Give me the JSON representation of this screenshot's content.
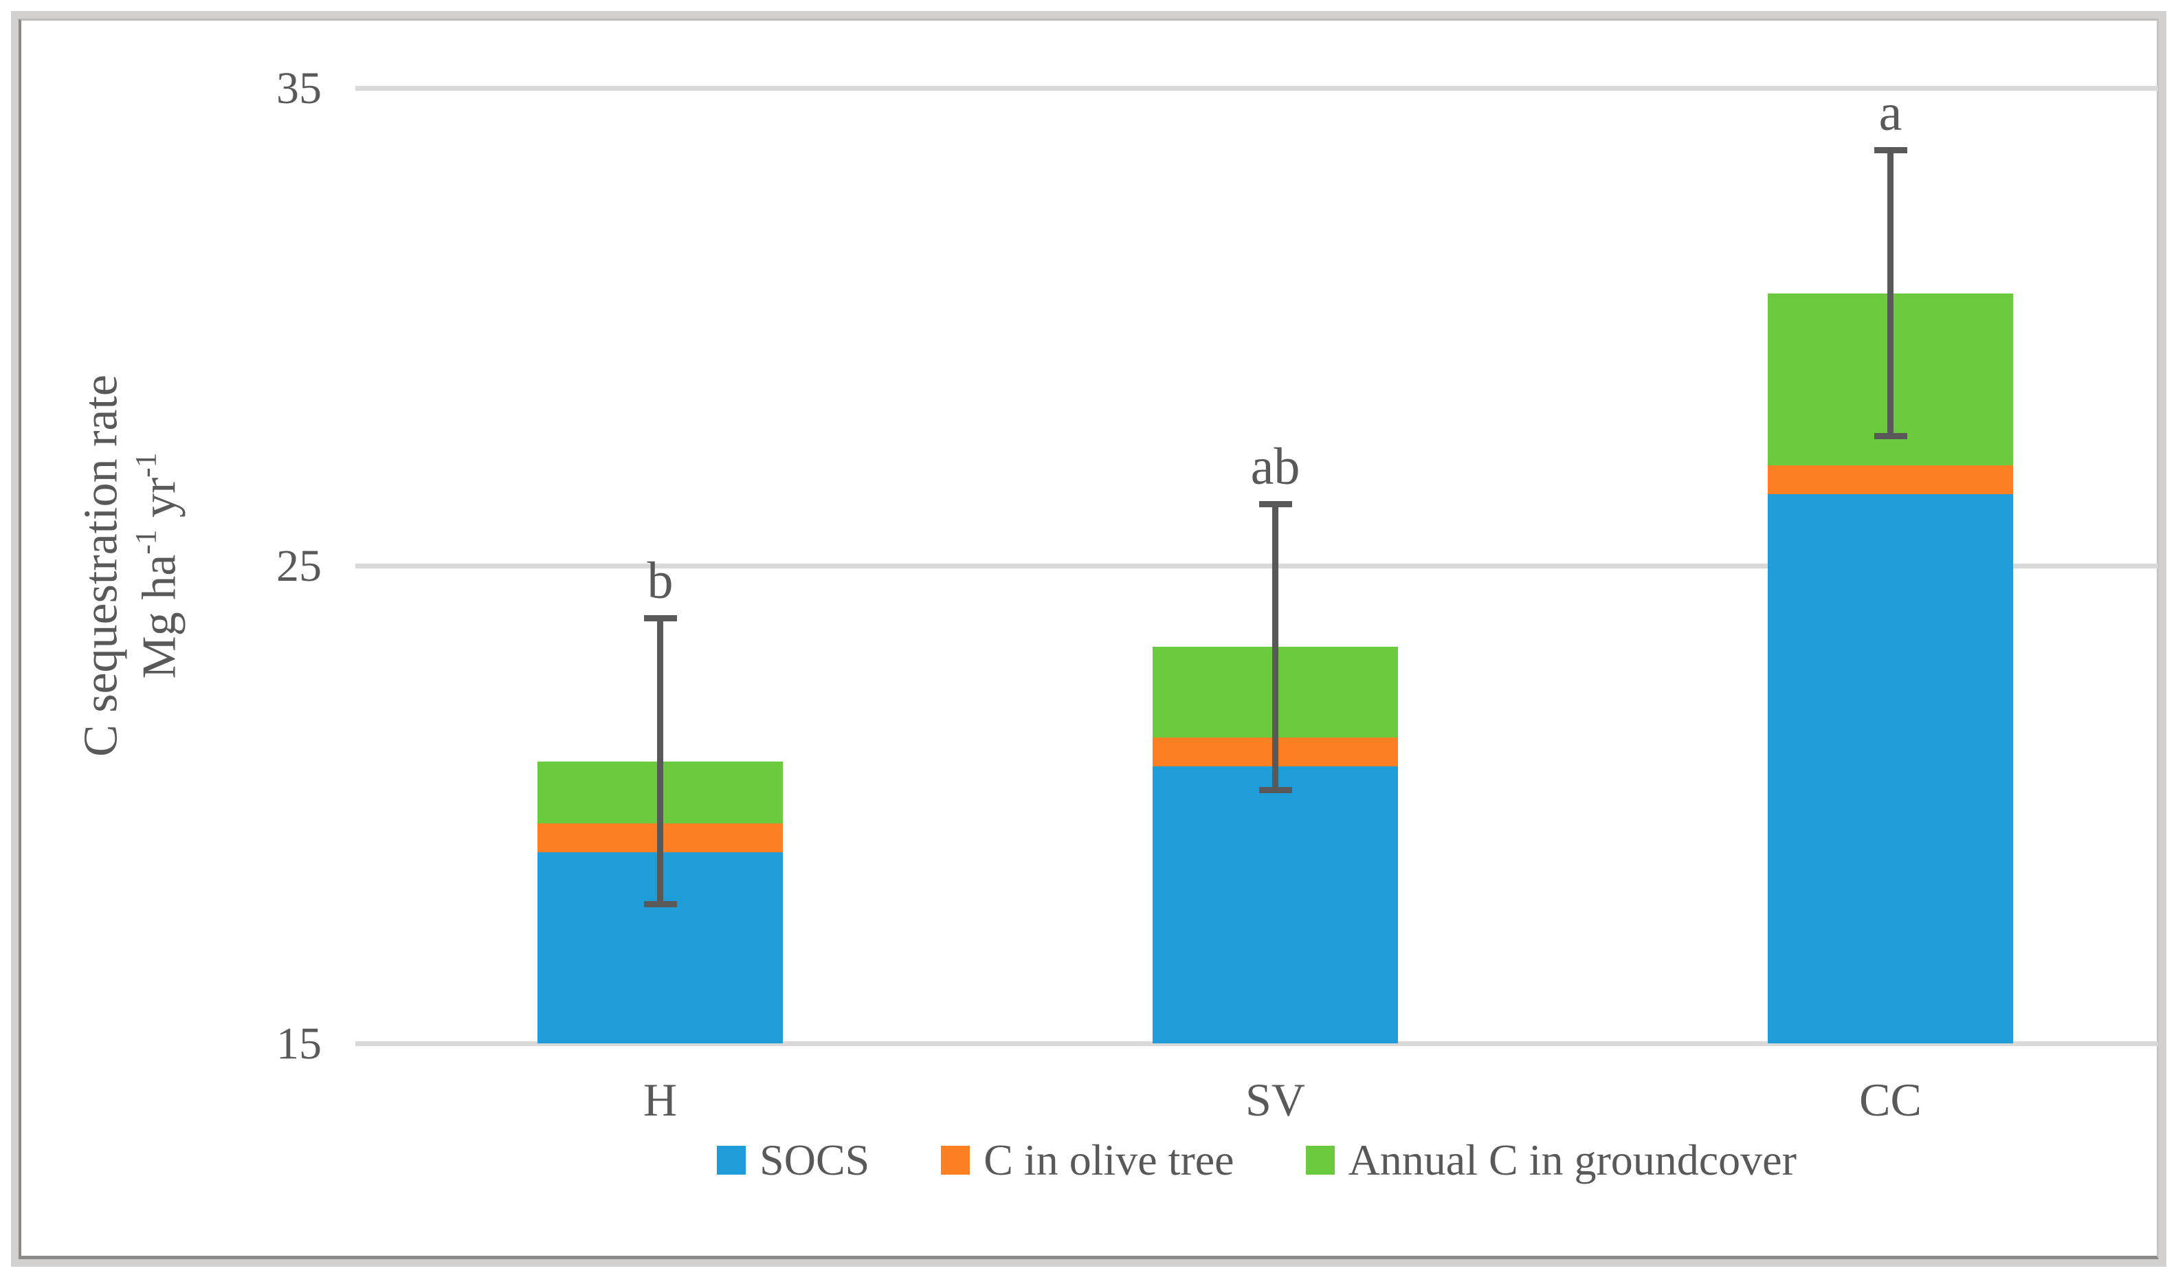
{
  "chart_data": {
    "type": "bar",
    "stacked": true,
    "orientation": "vertical",
    "categories": [
      "H",
      "SV",
      "CC"
    ],
    "series": [
      {
        "name": "SOCS",
        "color": "#1F9DD8",
        "values": [
          19.0,
          20.8,
          26.5
        ]
      },
      {
        "name": "C in olive tree",
        "color": "#FC7F21",
        "values": [
          0.6,
          0.6,
          0.6
        ]
      },
      {
        "name": "Annual C in groundcover",
        "color": "#6BCA3E",
        "values": [
          1.3,
          1.9,
          3.6
        ]
      }
    ],
    "totals": [
      20.9,
      23.3,
      30.7
    ],
    "error_bars": {
      "symmetric": true,
      "values": [
        3.0,
        3.0,
        3.0
      ]
    },
    "sig_letters": [
      "b",
      "ab",
      "a"
    ],
    "title": "",
    "xlabel": "",
    "ylabel_line1": "C sequestration rate",
    "ylabel_line2_parts": [
      "Mg ha",
      "-1",
      " yr",
      "-1"
    ],
    "yticks": [
      35,
      25,
      15
    ],
    "ylim": [
      15,
      35
    ],
    "grid": "horizontal-major",
    "legend_position": "bottom",
    "colors": {
      "text": "#595959",
      "gridline": "#D9D9D9",
      "error_bar": "#595959",
      "frame_dark": "#8A8A8A",
      "frame_light": "#D2D1D0",
      "background": "#FFFFFF"
    }
  }
}
